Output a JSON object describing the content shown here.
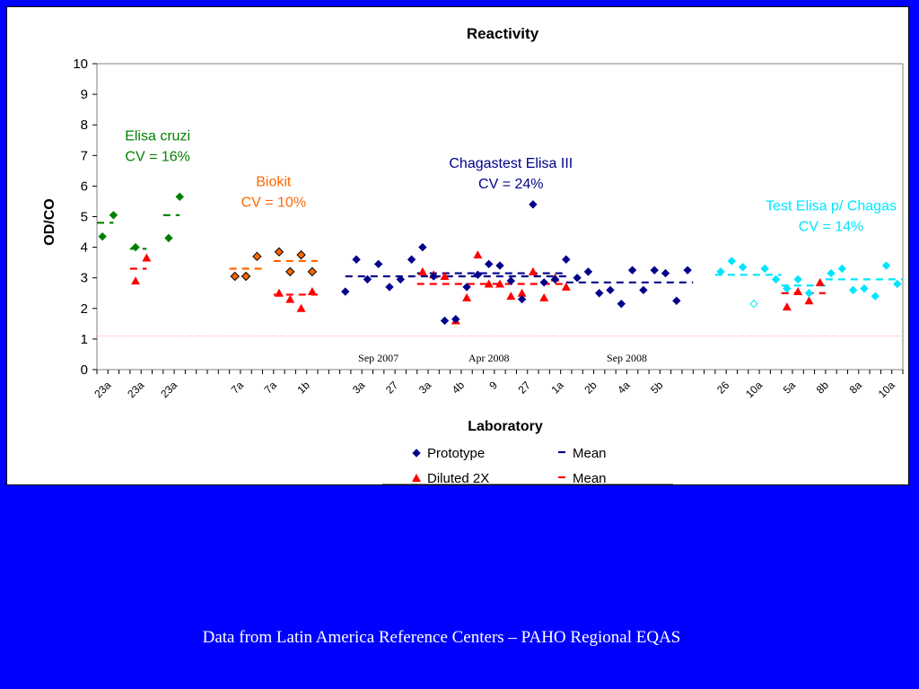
{
  "slide": {
    "caption": "Data from Latin America Reference Centers – PAHO Regional EQAS",
    "background": "#0000ff"
  },
  "chart_data": {
    "type": "scatter",
    "title": "Reactivity",
    "xlabel": "Laboratory",
    "ylabel": "OD/CO",
    "ylim": [
      0,
      10
    ],
    "yticks": [
      0,
      1,
      2,
      3,
      4,
      5,
      6,
      7,
      8,
      9,
      10
    ],
    "grid": false,
    "cutoff_line": 1.1,
    "x_tick_labels": [
      {
        "pos": 1,
        "label": "23a"
      },
      {
        "pos": 4,
        "label": "23a"
      },
      {
        "pos": 7,
        "label": "23a"
      },
      {
        "pos": 13,
        "label": "7a"
      },
      {
        "pos": 16,
        "label": "7a"
      },
      {
        "pos": 19,
        "label": "1b"
      },
      {
        "pos": 24,
        "label": "3a"
      },
      {
        "pos": 27,
        "label": "27"
      },
      {
        "pos": 30,
        "label": "3a"
      },
      {
        "pos": 33,
        "label": "4b"
      },
      {
        "pos": 36,
        "label": "9"
      },
      {
        "pos": 39,
        "label": "27"
      },
      {
        "pos": 42,
        "label": "1a"
      },
      {
        "pos": 45,
        "label": "2b"
      },
      {
        "pos": 48,
        "label": "4a"
      },
      {
        "pos": 51,
        "label": "5b"
      },
      {
        "pos": 57,
        "label": "26"
      },
      {
        "pos": 60,
        "label": "10a"
      },
      {
        "pos": 63,
        "label": "5a"
      },
      {
        "pos": 66,
        "label": "8b"
      },
      {
        "pos": 69,
        "label": "8a"
      },
      {
        "pos": 72,
        "label": "10a"
      }
    ],
    "date_labels": [
      {
        "pos": 25.5,
        "label": "Sep 2007"
      },
      {
        "pos": 35.5,
        "label": "Apr 2008"
      },
      {
        "pos": 48,
        "label": "Sep 2008"
      }
    ],
    "legend": {
      "placement": "bottom",
      "entries": [
        {
          "label": "Prototype",
          "marker": "diamond",
          "color": "#00008b"
        },
        {
          "label": "Mean",
          "marker": "dash",
          "color": "#00008b"
        },
        {
          "label": "Diluted 2X",
          "marker": "triangle",
          "color": "#ff0000"
        },
        {
          "label": "Mean",
          "marker": "dash",
          "color": "#ff0000"
        }
      ]
    },
    "groups": [
      {
        "name": "Elisa cruzi",
        "annotation": [
          "Elisa cruzi",
          "CV = 16%"
        ],
        "annotation_pos": [
          5.5,
          7.5
        ],
        "color": "#008000",
        "diluted_color": "#ff0000",
        "prototype": [
          [
            0.5,
            4.35
          ],
          [
            1.5,
            5.05
          ],
          [
            3.5,
            4.0
          ],
          [
            6.5,
            4.3
          ],
          [
            7.5,
            5.65
          ]
        ],
        "diluted": [
          [
            3.5,
            2.9
          ],
          [
            4.5,
            3.65
          ]
        ],
        "prototype_means": [
          {
            "x": [
              0,
              1.5
            ],
            "y": 4.8
          },
          {
            "x": [
              3,
              4.5
            ],
            "y": 3.95
          },
          {
            "x": [
              6,
              7.5
            ],
            "y": 5.05
          }
        ],
        "diluted_means": [
          {
            "x": [
              3,
              4.5
            ],
            "y": 3.3
          }
        ]
      },
      {
        "name": "Biokit",
        "annotation": [
          "Biokit",
          "CV = 10%"
        ],
        "annotation_pos": [
          16,
          6.0
        ],
        "color": "#ff6600",
        "diluted_color": "#ff0000",
        "prototype_style": "diamond-outline",
        "prototype": [
          [
            12.5,
            3.05
          ],
          [
            13.5,
            3.05
          ],
          [
            14.5,
            3.7
          ],
          [
            16.5,
            3.85
          ],
          [
            17.5,
            3.2
          ],
          [
            18.5,
            3.75
          ],
          [
            19.5,
            3.2
          ]
        ],
        "diluted": [
          [
            16.5,
            2.5
          ],
          [
            17.5,
            2.3
          ],
          [
            18.5,
            2.0
          ],
          [
            19.5,
            2.55
          ]
        ],
        "prototype_means": [
          {
            "x": [
              12,
              15
            ],
            "y": 3.3
          },
          {
            "x": [
              16,
              20
            ],
            "y": 3.55
          }
        ],
        "diluted_means": [
          {
            "x": [
              16,
              20
            ],
            "y": 2.45
          }
        ]
      },
      {
        "name": "Chagastest Elisa III",
        "annotation": [
          "Chagastest Elisa III",
          "CV = 24%"
        ],
        "annotation_pos": [
          37.5,
          6.6
        ],
        "color": "#00008b",
        "diluted_color": "#ff0000",
        "prototype": [
          [
            22.5,
            2.55
          ],
          [
            23.5,
            3.6
          ],
          [
            24.5,
            2.95
          ],
          [
            25.5,
            3.45
          ],
          [
            26.5,
            2.7
          ],
          [
            27.5,
            2.95
          ],
          [
            28.5,
            3.6
          ],
          [
            29.5,
            4.0
          ],
          [
            30.5,
            3.05
          ],
          [
            31.5,
            1.6
          ],
          [
            32.5,
            1.65
          ],
          [
            33.5,
            2.7
          ],
          [
            34.5,
            3.1
          ],
          [
            35.5,
            3.45
          ],
          [
            36.5,
            3.4
          ],
          [
            37.5,
            2.9
          ],
          [
            38.5,
            2.3
          ],
          [
            39.5,
            5.4
          ],
          [
            40.5,
            2.85
          ],
          [
            41.5,
            2.95
          ],
          [
            42.5,
            3.6
          ],
          [
            43.5,
            3.0
          ],
          [
            44.5,
            3.2
          ],
          [
            45.5,
            2.5
          ],
          [
            46.5,
            2.6
          ],
          [
            47.5,
            2.15
          ],
          [
            48.5,
            3.25
          ],
          [
            49.5,
            2.6
          ],
          [
            50.5,
            3.25
          ],
          [
            51.5,
            3.15
          ],
          [
            52.5,
            2.25
          ],
          [
            53.5,
            3.25
          ]
        ],
        "diluted": [
          [
            29.5,
            3.2
          ],
          [
            30.5,
            3.1
          ],
          [
            31.5,
            3.05
          ],
          [
            32.5,
            1.6
          ],
          [
            33.5,
            2.35
          ],
          [
            34.5,
            3.75
          ],
          [
            35.5,
            2.8
          ],
          [
            36.5,
            2.8
          ],
          [
            37.5,
            2.4
          ],
          [
            38.5,
            2.5
          ],
          [
            39.5,
            3.2
          ],
          [
            40.5,
            2.35
          ],
          [
            41.5,
            3.0
          ],
          [
            42.5,
            2.7
          ]
        ],
        "prototype_means": [
          {
            "x": [
              22.5,
              42.5
            ],
            "y": 3.05
          },
          {
            "x": [
              29,
              42.5
            ],
            "y": 3.15
          },
          {
            "x": [
              42.5,
              54
            ],
            "y": 2.85
          }
        ],
        "diluted_means": [
          {
            "x": [
              29,
              42.5
            ],
            "y": 2.8
          }
        ]
      },
      {
        "name": "Test Elisa p/ Chagas",
        "annotation": [
          "Test Elisa p/ Chagas",
          "CV = 14%"
        ],
        "annotation_pos": [
          66.5,
          5.2
        ],
        "color": "#00e5ff",
        "diluted_color": "#ff0000",
        "prototype": [
          [
            56.5,
            3.2
          ],
          [
            57.5,
            3.55
          ],
          [
            58.5,
            3.35
          ],
          [
            60.5,
            3.3
          ],
          [
            61.5,
            2.95
          ],
          [
            62.5,
            2.65
          ],
          [
            63.5,
            2.95
          ],
          [
            64.5,
            2.5
          ],
          [
            66.5,
            3.15
          ],
          [
            67.5,
            3.3
          ],
          [
            68.5,
            2.6
          ],
          [
            69.5,
            2.65
          ],
          [
            70.5,
            2.4
          ],
          [
            71.5,
            3.4
          ],
          [
            72.5,
            2.8
          ]
        ],
        "prototype_outline": [
          [
            59.5,
            2.15
          ]
        ],
        "diluted": [
          [
            62.5,
            2.05
          ],
          [
            63.5,
            2.55
          ],
          [
            64.5,
            2.25
          ],
          [
            65.5,
            2.85
          ]
        ],
        "prototype_means": [
          {
            "x": [
              56,
              62
            ],
            "y": 3.1
          },
          {
            "x": [
              62,
              66
            ],
            "y": 2.75
          },
          {
            "x": [
              66,
              73
            ],
            "y": 2.95
          }
        ],
        "diluted_means": [
          {
            "x": [
              62,
              66
            ],
            "y": 2.5
          }
        ]
      }
    ]
  }
}
